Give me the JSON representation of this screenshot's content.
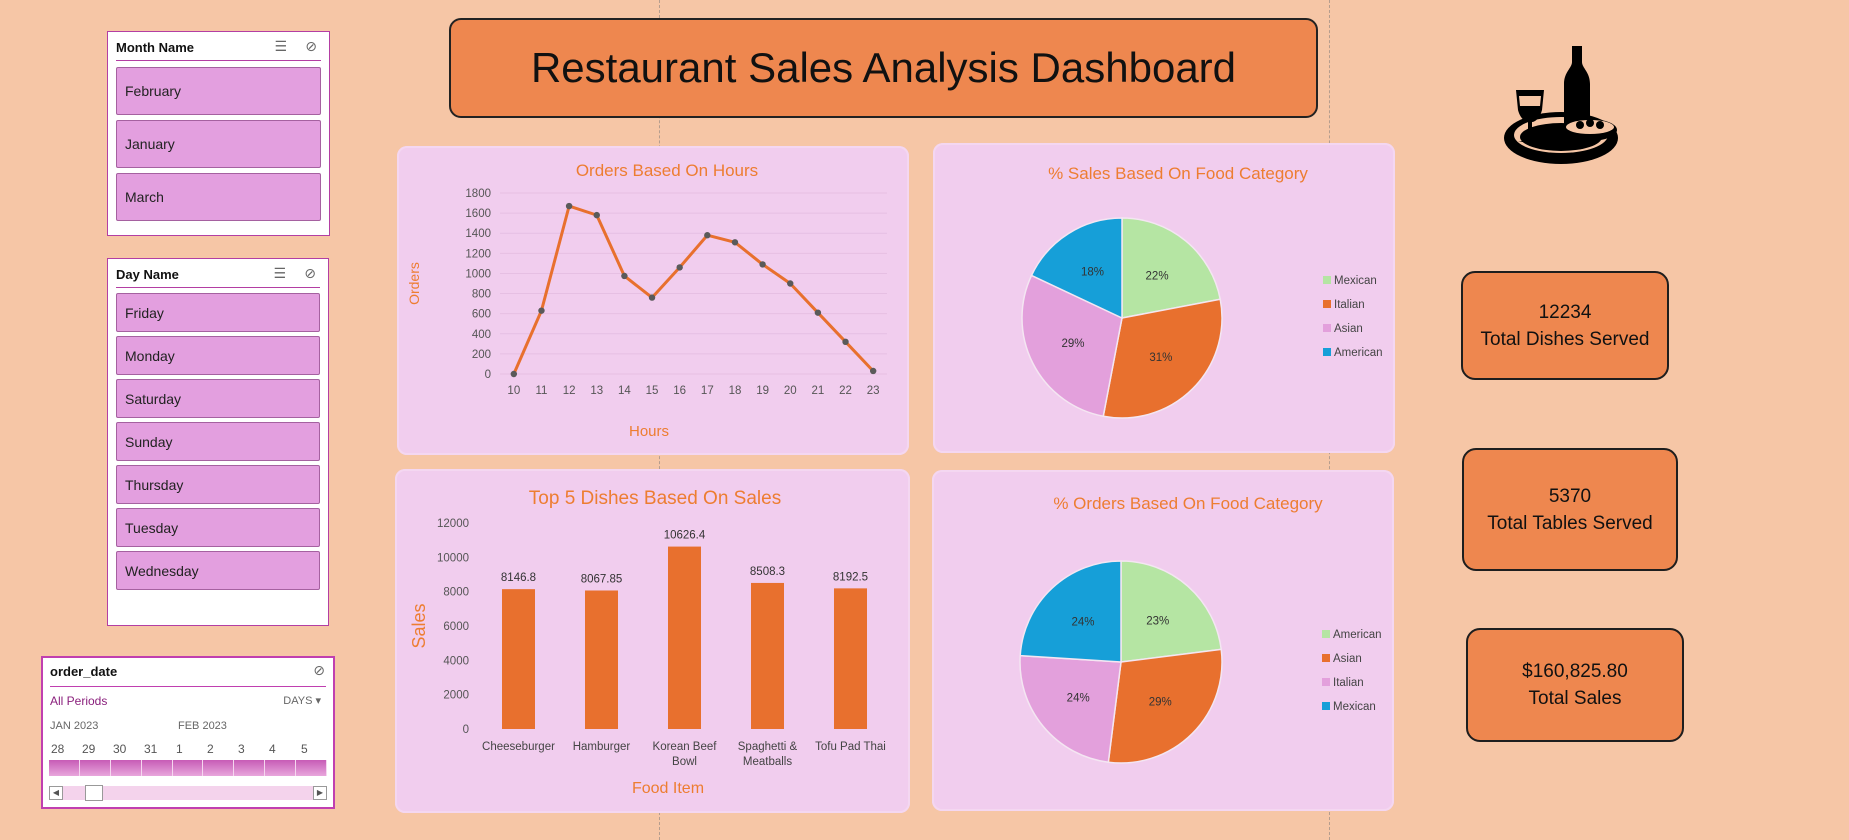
{
  "dashboard_title": "Restaurant Sales Analysis Dashboard",
  "slicers": {
    "month": {
      "title": "Month Name",
      "items": [
        "February",
        "January",
        "March"
      ]
    },
    "day": {
      "title": "Day Name",
      "items": [
        "Friday",
        "Monday",
        "Saturday",
        "Sunday",
        "Thursday",
        "Tuesday",
        "Wednesday"
      ]
    }
  },
  "timeline": {
    "title": "order_date",
    "all_periods": "All Periods",
    "level": "DAYS",
    "months": [
      "JAN 2023",
      "FEB 2023"
    ],
    "days": [
      "28",
      "29",
      "30",
      "31",
      "1",
      "2",
      "3",
      "4",
      "5"
    ]
  },
  "kpis": [
    {
      "value": "12234",
      "label": "Total Dishes Served"
    },
    {
      "value": "5370",
      "label": "Total Tables Served"
    },
    {
      "value": "$160,825.80",
      "label": "Total Sales"
    }
  ],
  "icons": {
    "logo": "wine-and-food-plate-icon",
    "multi_select": "multi-select-icon",
    "clear_filter": "clear-filter-icon"
  },
  "colors": {
    "accent": "#ee874f",
    "title_text": "#ed7d31",
    "line": "#e8702e",
    "bar": "#e8702e",
    "panel": "#f1cdee",
    "slicer_item": "#e39fdf"
  },
  "chart_data": [
    {
      "type": "line",
      "title": "Orders Based On Hours",
      "xlabel": "Hours",
      "ylabel": "Orders",
      "x": [
        10,
        11,
        12,
        13,
        14,
        15,
        16,
        17,
        18,
        19,
        20,
        21,
        22,
        23
      ],
      "values": [
        0,
        630,
        1670,
        1580,
        975,
        760,
        1060,
        1380,
        1310,
        1090,
        900,
        610,
        320,
        30
      ],
      "ylim": [
        0,
        1800
      ],
      "yticks": [
        0,
        200,
        400,
        600,
        800,
        1000,
        1200,
        1400,
        1600,
        1800
      ],
      "grid": true
    },
    {
      "type": "pie",
      "title": "%  Sales Based On  Food Category",
      "labels": [
        "Mexican",
        "Italian",
        "Asian",
        "American"
      ],
      "values": [
        22,
        31,
        29,
        18
      ],
      "data_labels": [
        "22%",
        "31%",
        "29%",
        "18%"
      ],
      "colors": [
        "#b5e5a3",
        "#e8702e",
        "#e3a0dc",
        "#169fd8"
      ],
      "legend": "right"
    },
    {
      "type": "bar",
      "title": "Top 5 Dishes Based On Sales",
      "xlabel": "Food Item",
      "ylabel": "Sales",
      "categories": [
        "Cheeseburger",
        "Hamburger",
        "Korean Beef Bowl",
        "Spaghetti & Meatballs",
        "Tofu Pad Thai"
      ],
      "category_lines": [
        [
          "Cheeseburger"
        ],
        [
          "Hamburger"
        ],
        [
          "Korean Beef",
          "Bowl"
        ],
        [
          "Spaghetti &",
          "Meatballs"
        ],
        [
          "Tofu Pad Thai"
        ]
      ],
      "values": [
        8146.8,
        8067.85,
        10626.4,
        8508.3,
        8192.5
      ],
      "data_labels": [
        "8146.8",
        "8067.85",
        "10626.4",
        "8508.3",
        "8192.5"
      ],
      "ylim": [
        0,
        12000
      ],
      "yticks": [
        0,
        2000,
        4000,
        6000,
        8000,
        10000,
        12000
      ]
    },
    {
      "type": "pie",
      "title": "%  Orders Based On Food Category",
      "labels": [
        "American",
        "Asian",
        "Italian",
        "Mexican"
      ],
      "slice_order": [
        "Mexican",
        "Asian",
        "Italian",
        "American"
      ],
      "values": [
        23,
        29,
        24,
        24
      ],
      "data_labels": [
        "23%",
        "29%",
        "24%",
        "24%"
      ],
      "colors": [
        "#b5e5a3",
        "#e8702e",
        "#e3a0dc",
        "#169fd8"
      ],
      "legend_colors": [
        "#b5e5a3",
        "#e8702e",
        "#e3a0dc",
        "#169fd8"
      ],
      "legend": "right"
    }
  ]
}
